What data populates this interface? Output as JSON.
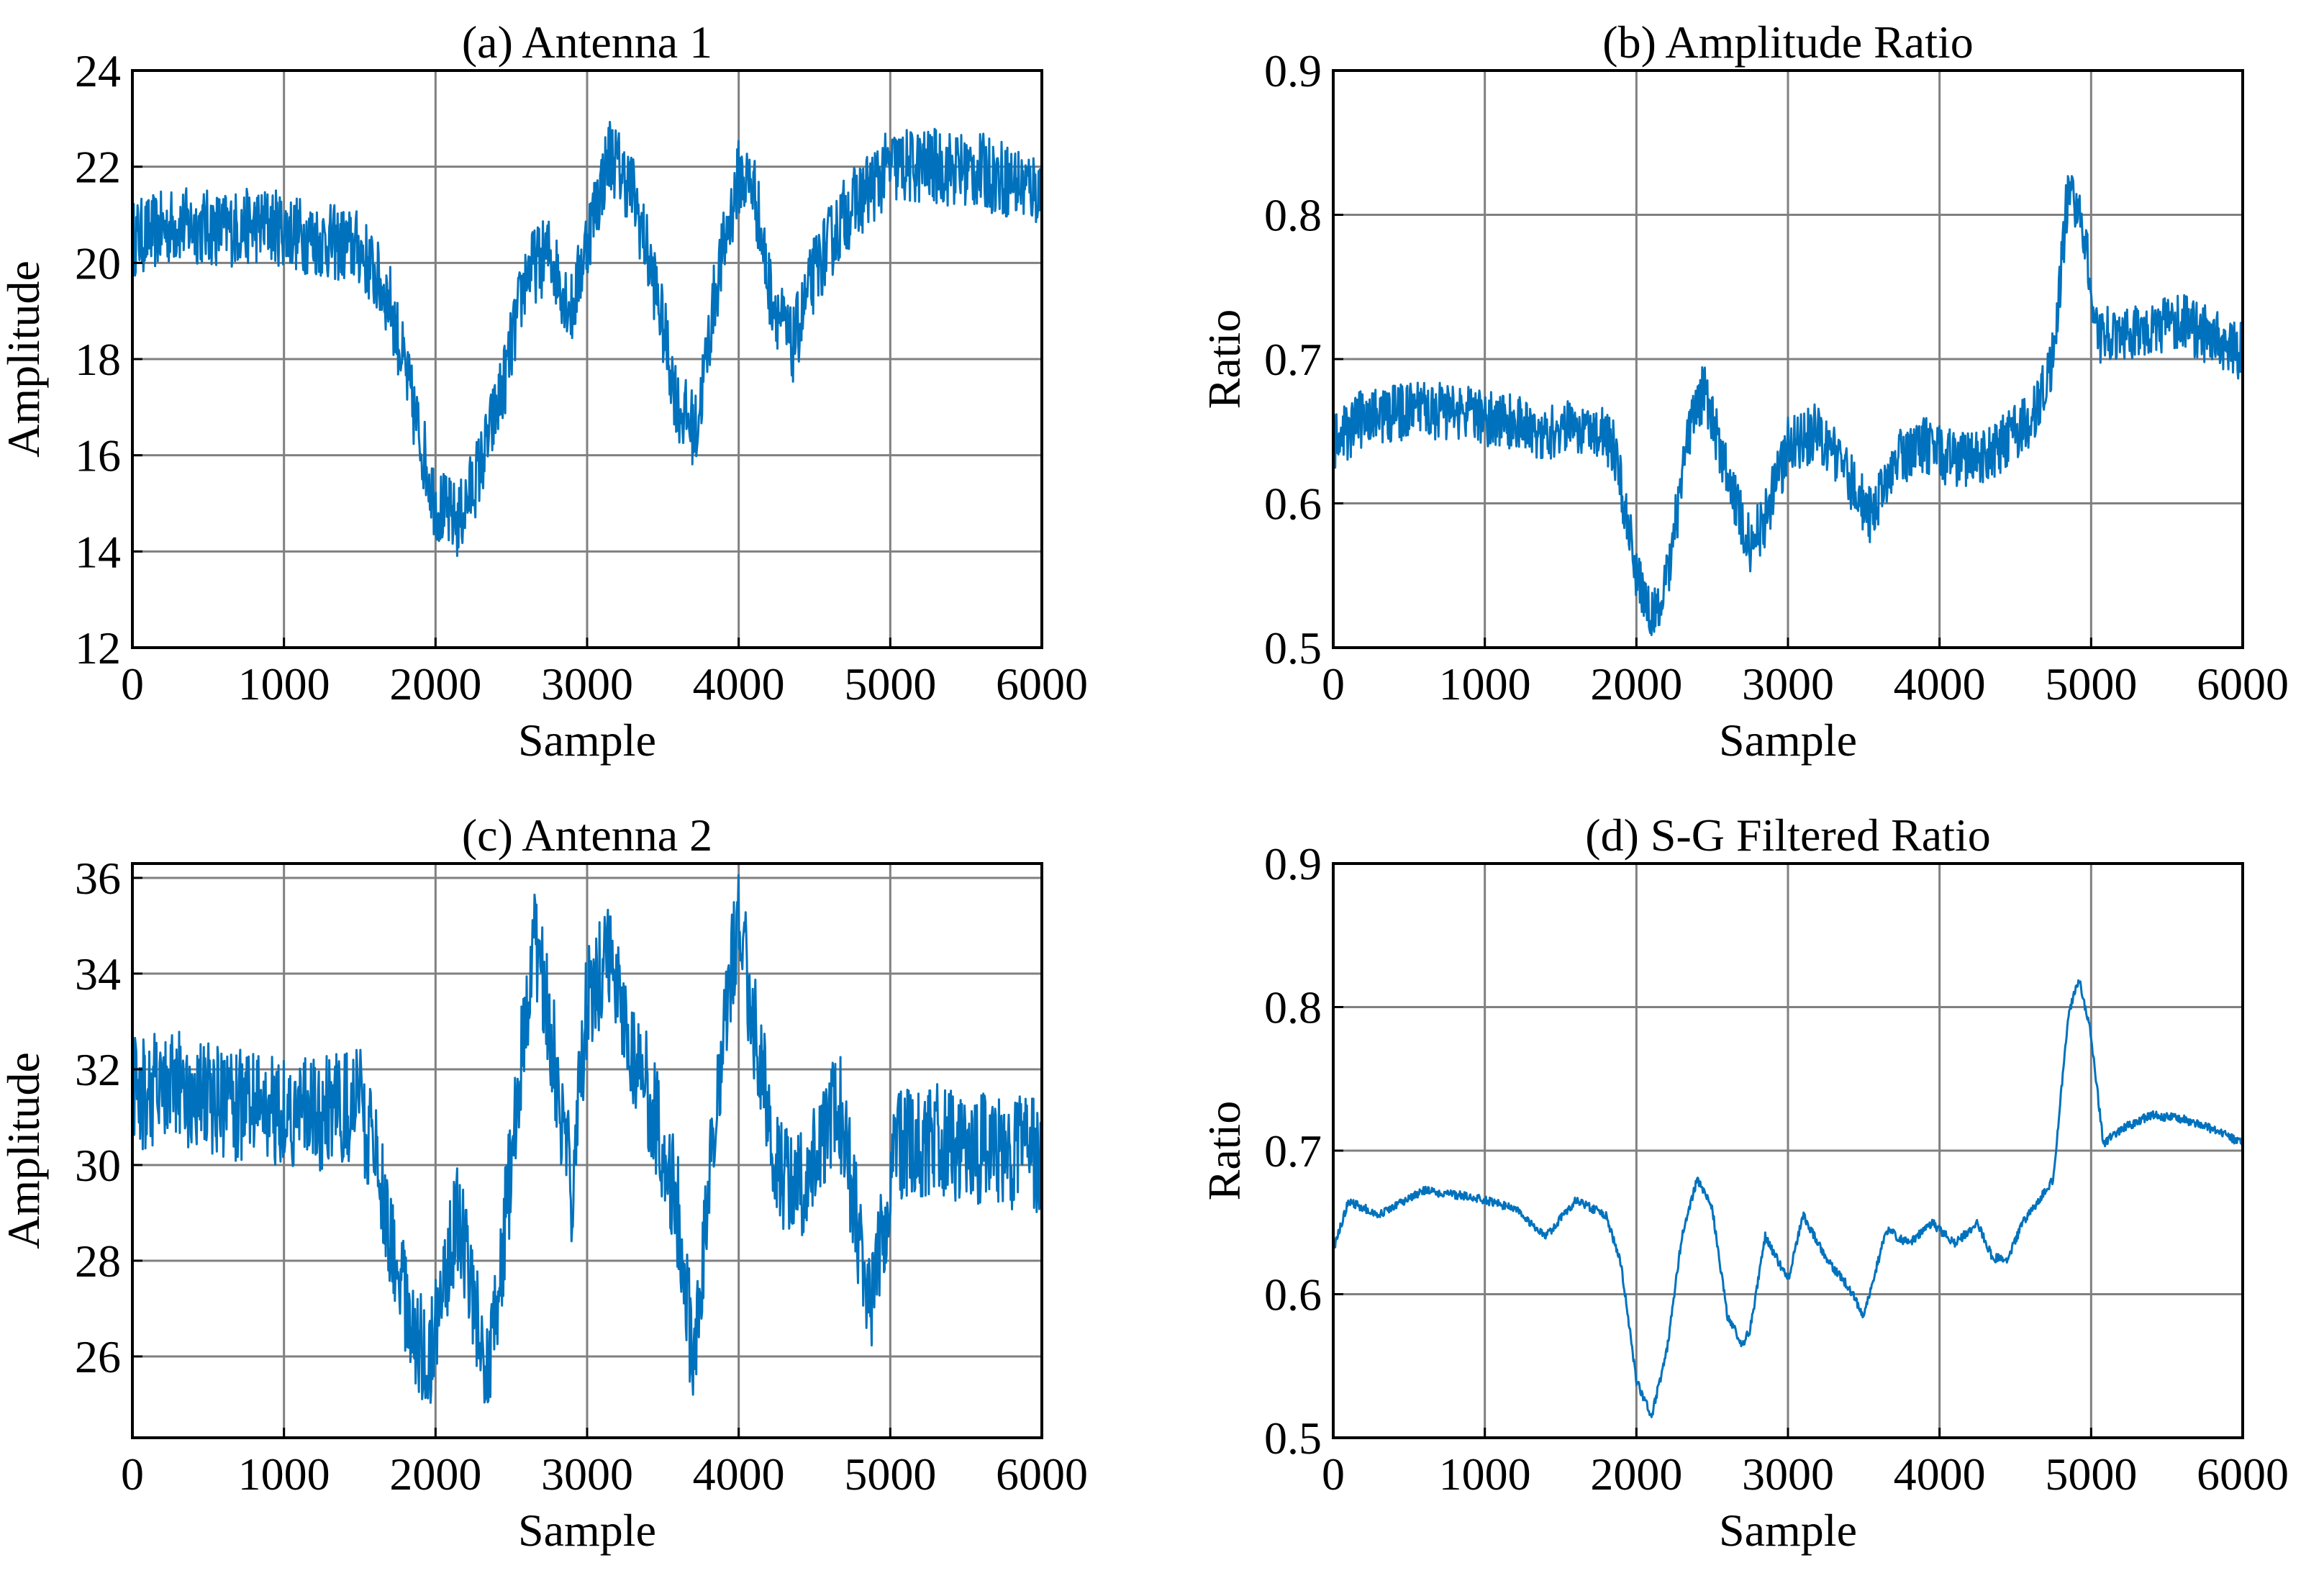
{
  "figure": {
    "series_color": "#0072BD"
  },
  "chart_data": [
    {
      "id": "a",
      "type": "line",
      "title": "(a) Antenna 1",
      "xlabel": "Sample",
      "ylabel": "Amplitude",
      "xlim": [
        0,
        6000
      ],
      "ylim": [
        12,
        24
      ],
      "xticks": [
        0,
        1000,
        2000,
        3000,
        4000,
        5000,
        6000
      ],
      "yticks": [
        12,
        14,
        16,
        18,
        20,
        22,
        24
      ],
      "grid": true,
      "noise_amplitude": 0.8,
      "series": [
        {
          "name": "Antenna 1 amplitude",
          "x": [
            0,
            300,
            600,
            900,
            1200,
            1500,
            1700,
            1850,
            2000,
            2150,
            2300,
            2450,
            2600,
            2750,
            2900,
            3000,
            3150,
            3300,
            3450,
            3600,
            3720,
            3850,
            4000,
            4100,
            4200,
            4350,
            4500,
            4700,
            4850,
            5000,
            5300,
            5600,
            6000
          ],
          "y": [
            20.5,
            20.8,
            20.7,
            20.8,
            20.5,
            20.3,
            19.2,
            17.0,
            15.0,
            14.6,
            15.8,
            17.5,
            19.8,
            20.2,
            19.0,
            20.5,
            22.3,
            21.5,
            19.5,
            17.0,
            16.5,
            19.5,
            21.8,
            21.6,
            19.5,
            18.2,
            19.8,
            21.0,
            21.5,
            22.0,
            22.0,
            21.9,
            21.5
          ]
        }
      ]
    },
    {
      "id": "b",
      "type": "line",
      "title": "(b) Amplitude Ratio",
      "xlabel": "Sample",
      "ylabel": "Ratio",
      "xlim": [
        0,
        6000
      ],
      "ylim": [
        0.5,
        0.9
      ],
      "xticks": [
        0,
        1000,
        2000,
        3000,
        4000,
        5000,
        6000
      ],
      "yticks": [
        0.5,
        0.6,
        0.7,
        0.8,
        0.9
      ],
      "grid": true,
      "noise_amplitude": 0.02,
      "series": [
        {
          "name": "Amplitude ratio",
          "x": [
            0,
            200,
            600,
            1000,
            1400,
            1700,
            1850,
            1950,
            2050,
            2150,
            2250,
            2350,
            2450,
            2600,
            2750,
            2850,
            3000,
            3200,
            3450,
            3550,
            3700,
            3900,
            4100,
            4300,
            4500,
            4650,
            4750,
            4850,
            4950,
            5050,
            5300,
            5600,
            6000
          ],
          "y": [
            0.64,
            0.66,
            0.665,
            0.66,
            0.65,
            0.655,
            0.64,
            0.58,
            0.53,
            0.52,
            0.58,
            0.65,
            0.68,
            0.62,
            0.57,
            0.59,
            0.64,
            0.65,
            0.61,
            0.59,
            0.63,
            0.64,
            0.63,
            0.63,
            0.65,
            0.665,
            0.7,
            0.82,
            0.79,
            0.715,
            0.72,
            0.725,
            0.705
          ]
        }
      ]
    },
    {
      "id": "c",
      "type": "line",
      "title": "(c) Antenna 2",
      "xlabel": "Sample",
      "ylabel": "Amplitude",
      "xlim": [
        0,
        6000
      ],
      "ylim": [
        24.3,
        36.3
      ],
      "xticks": [
        0,
        1000,
        2000,
        3000,
        4000,
        5000,
        6000
      ],
      "yticks": [
        26,
        28,
        30,
        32,
        34,
        36
      ],
      "grid": true,
      "noise_amplitude": 1.2,
      "series": [
        {
          "name": "Antenna 2 amplitude",
          "x": [
            0,
            300,
            600,
            900,
            1200,
            1500,
            1650,
            1800,
            1950,
            2050,
            2150,
            2250,
            2350,
            2500,
            2650,
            2750,
            2900,
            3000,
            3150,
            3300,
            3450,
            3600,
            3700,
            3800,
            3900,
            4000,
            4100,
            4250,
            4400,
            4550,
            4650,
            4750,
            4850,
            4950,
            5050,
            5300,
            5600,
            6000
          ],
          "y": [
            31.5,
            31.6,
            31.3,
            31.2,
            31.0,
            31.3,
            29.5,
            27.0,
            25.8,
            27.5,
            29.0,
            27.0,
            25.5,
            30.0,
            34.8,
            33.0,
            29.5,
            33.5,
            34.5,
            32.5,
            31.0,
            29.0,
            25.8,
            29.5,
            33.0,
            35.0,
            33.0,
            30.0,
            29.5,
            30.5,
            31.5,
            29.5,
            27.0,
            28.5,
            30.5,
            30.5,
            30.3,
            30.2
          ]
        }
      ]
    },
    {
      "id": "d",
      "type": "line",
      "title": "(d) S-G Filtered Ratio",
      "xlabel": "Sample",
      "ylabel": "Ratio",
      "xlim": [
        0,
        6000
      ],
      "ylim": [
        0.5,
        0.9
      ],
      "xticks": [
        0,
        1000,
        2000,
        3000,
        4000,
        5000,
        6000
      ],
      "yticks": [
        0.5,
        0.6,
        0.7,
        0.8,
        0.9
      ],
      "grid": true,
      "noise_amplitude": 0.003,
      "series": [
        {
          "name": "S-G filtered ratio",
          "x": [
            0,
            100,
            300,
            600,
            900,
            1200,
            1400,
            1600,
            1800,
            1900,
            2000,
            2100,
            2200,
            2300,
            2400,
            2500,
            2600,
            2700,
            2750,
            2850,
            3000,
            3100,
            3250,
            3400,
            3500,
            3650,
            3800,
            3950,
            4100,
            4250,
            4350,
            4450,
            4550,
            4650,
            4750,
            4850,
            4920,
            5000,
            5080,
            5200,
            5400,
            5600,
            5800,
            6000
          ],
          "y": [
            0.63,
            0.665,
            0.655,
            0.672,
            0.668,
            0.66,
            0.64,
            0.665,
            0.655,
            0.62,
            0.54,
            0.515,
            0.56,
            0.64,
            0.68,
            0.66,
            0.585,
            0.565,
            0.575,
            0.64,
            0.61,
            0.655,
            0.625,
            0.605,
            0.585,
            0.645,
            0.635,
            0.65,
            0.635,
            0.65,
            0.625,
            0.625,
            0.65,
            0.665,
            0.68,
            0.795,
            0.82,
            0.78,
            0.705,
            0.715,
            0.725,
            0.722,
            0.715,
            0.705
          ]
        }
      ]
    }
  ]
}
